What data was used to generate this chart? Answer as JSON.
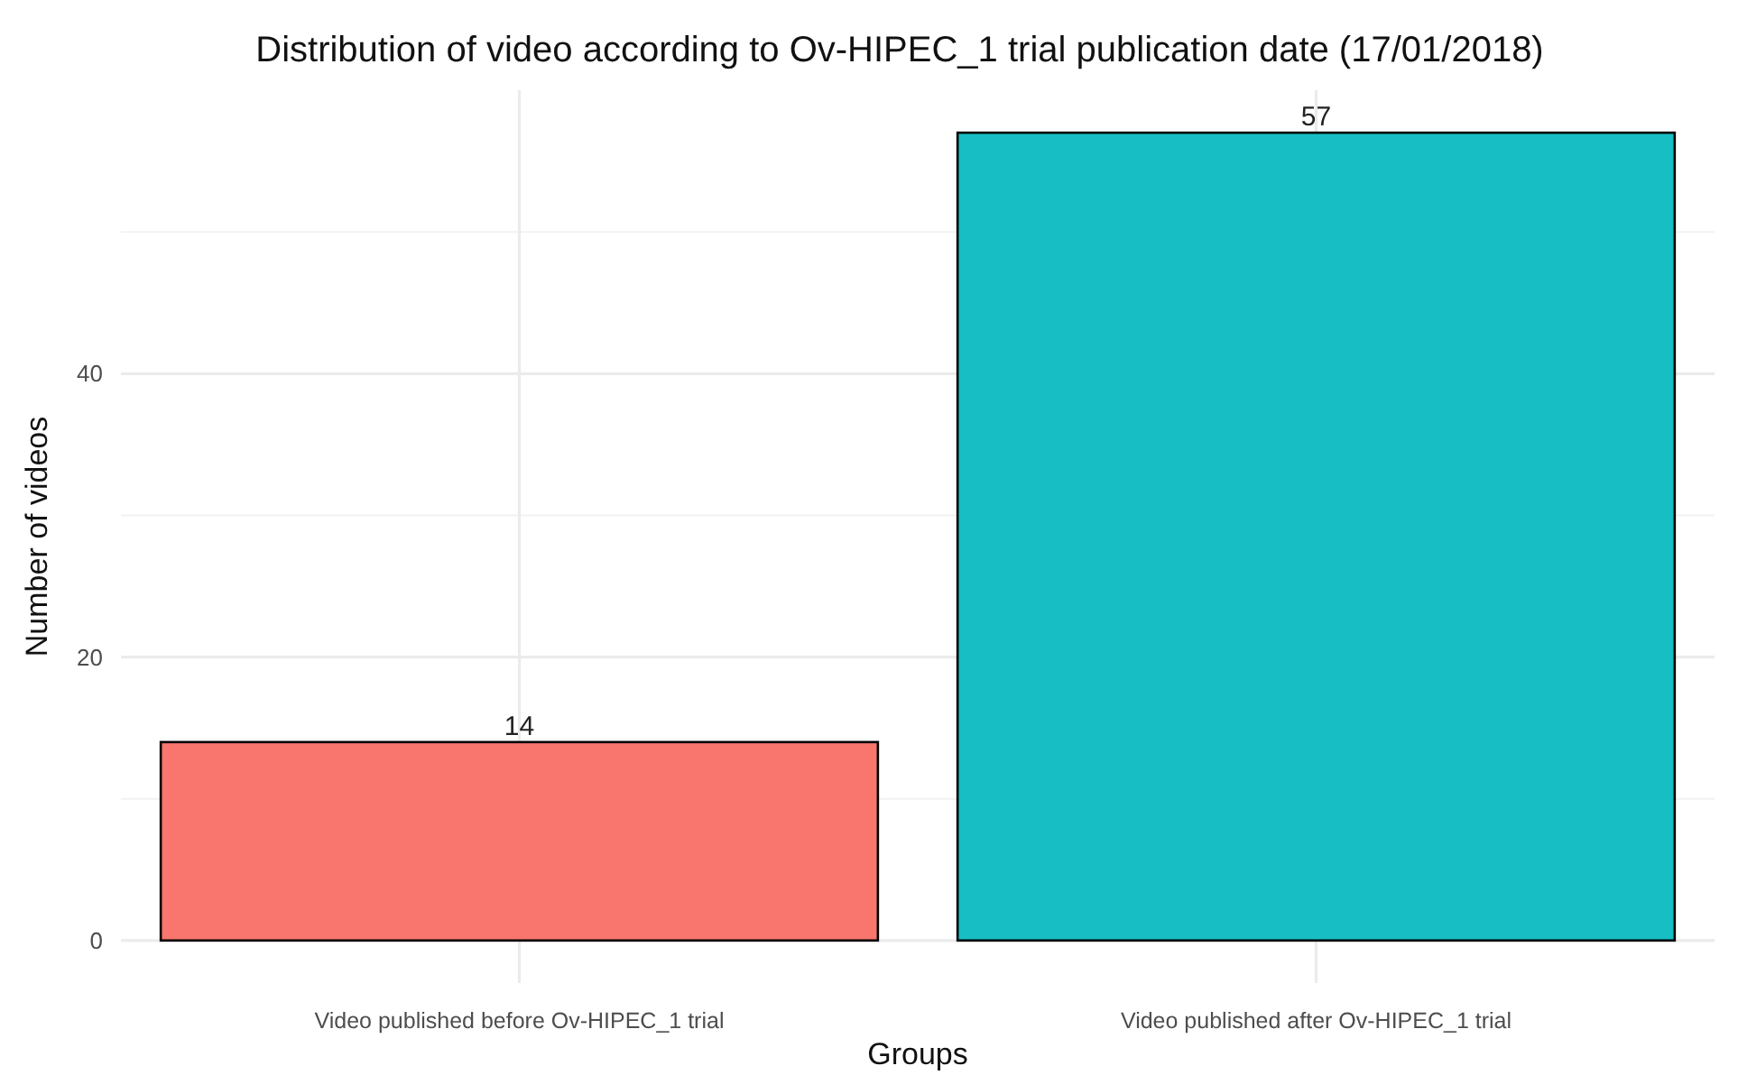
{
  "chart_data": {
    "type": "bar",
    "title": "Distribution of video according to Ov-HIPEC_1 trial publication date (17/01/2018)",
    "xlabel": "Groups",
    "ylabel": "Number of videos",
    "categories": [
      "Video published before Ov-HIPEC_1 trial",
      "Video published after Ov-HIPEC_1 trial"
    ],
    "values": [
      14,
      57
    ],
    "colors": [
      "#f8766d",
      "#17bec4"
    ],
    "ylim": [
      -3,
      60
    ],
    "yticks": [
      0,
      20,
      40
    ],
    "grid": true,
    "data_labels": true
  }
}
